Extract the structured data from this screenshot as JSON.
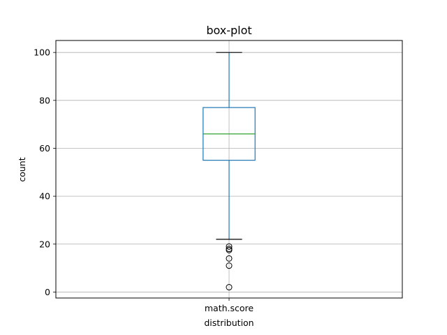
{
  "chart_data": {
    "type": "box",
    "title": "box-plot",
    "xlabel": "distribution",
    "ylabel": "count",
    "categories": [
      "math.score"
    ],
    "ylim": [
      -2.5,
      105
    ],
    "yticks": [
      0,
      20,
      40,
      60,
      80,
      100
    ],
    "grid": true,
    "boxes": [
      {
        "name": "math.score",
        "whisker_low": 22,
        "q1": 55,
        "median": 66,
        "q3": 77,
        "whisker_high": 100,
        "outliers": [
          19,
          18,
          17.5,
          14,
          11,
          2
        ]
      }
    ],
    "colors": {
      "box": "#1f77b4",
      "median": "#2ca02c",
      "caps": "#000000",
      "grid": "#b0b0b0"
    }
  }
}
